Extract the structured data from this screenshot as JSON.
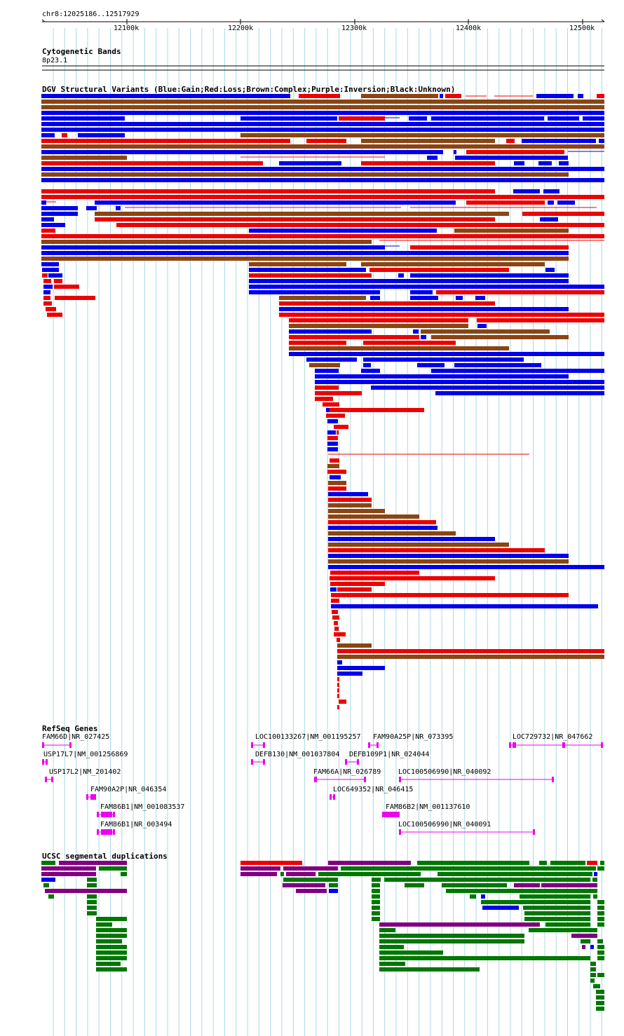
{
  "position": "chr8:12025186..12517929",
  "ruler": {
    "ticks": [
      "12100k",
      "12200k",
      "12300k",
      "12400k",
      "12500k"
    ]
  },
  "tracks": {
    "cytoband": {
      "title": "Cytogenetic Bands",
      "band": "8p23.1"
    },
    "dgv": {
      "title": "DGV Structural Variants (Blue:Gain;Red:Loss;Brown:Complex;Purple:Inversion;Black:Unknown)"
    },
    "refseq": {
      "title": "RefSeq Genes",
      "genes": [
        "FAM66D|NR_027425",
        "USP17L7|NM_001256869",
        "USP17L2|NM_201402",
        "FAM90A2P|NR_046354",
        "FAM86B1|NM_001083537",
        "FAM86B1|NR_003494",
        "LOC100133267|NM_001195257",
        "DEFB130|NM_001037804",
        "FAM66A|NR_026789",
        "LOC649352|NR_046415",
        "FAM90A25P|NR_073395",
        "DEFB109P1|NR_024044",
        "LOC100506990|NR_040092",
        "FAM86B2|NM_001137610",
        "LOC100506990|NR_040091",
        "LOC729732|NR_047662"
      ]
    },
    "segdup": {
      "title": "UCSC segmental duplications"
    }
  },
  "colors": {
    "gain": "#0000ee",
    "loss": "#ee0000",
    "complex": "#8b4513",
    "gene": "#ee00ee",
    "segdup_green": "#007700",
    "segdup_purple": "#800080",
    "gridline": "#add8e6"
  }
}
